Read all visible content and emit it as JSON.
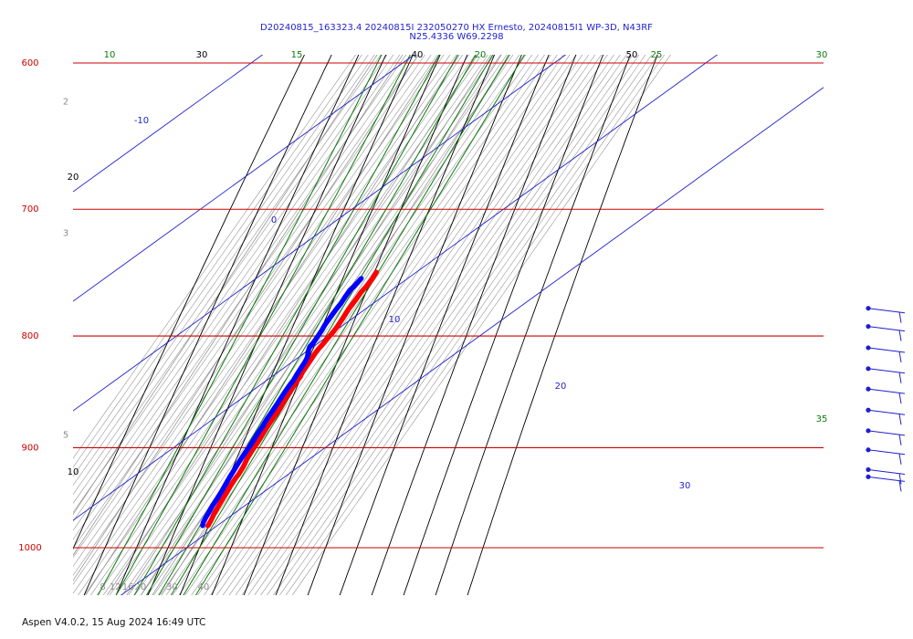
{
  "chart_data": {
    "type": "line",
    "chart_kind": "Skew-T log-P diagram",
    "title_line1": "D20240815_163323.4 20240815I 232050270 HX Ernesto, 20240815I1 WP-3D, N43RF",
    "title_line2": "N25.4336 W69.2298",
    "pressure_range_hPa": [
      1050,
      600
    ],
    "temperature_range_C": [
      6,
      44
    ],
    "isobars": [
      {
        "p": 600,
        "label": "600"
      },
      {
        "p": 700,
        "label": "700"
      },
      {
        "p": 800,
        "label": "800"
      },
      {
        "p": 900,
        "label": "900"
      },
      {
        "p": 1000,
        "label": "1000"
      }
    ],
    "isotherm_labels": [
      {
        "t": 8,
        "label": "8"
      },
      {
        "t": 12,
        "label": "12"
      },
      {
        "t": 16,
        "label": "16"
      },
      {
        "t": 20,
        "label": "20"
      },
      {
        "t": 30,
        "label": "30"
      },
      {
        "t": 40,
        "label": "40"
      }
    ],
    "mixing_ratio_labels": [
      {
        "label": "2",
        "p": 625
      },
      {
        "label": "3",
        "p": 718
      },
      {
        "label": "5",
        "p": 888
      }
    ],
    "moist_adiabat_labels": [
      {
        "label": "10",
        "p": 600
      },
      {
        "label": "15",
        "p": 600
      },
      {
        "label": "20",
        "p": 600
      },
      {
        "label": "25",
        "p": 600
      },
      {
        "label": "30",
        "p": 600
      },
      {
        "label": "35",
        "p": 873
      }
    ],
    "theta_e_labels": [
      {
        "label": "-10"
      },
      {
        "label": "0"
      },
      {
        "label": "10"
      },
      {
        "label": "20"
      },
      {
        "label": "30"
      }
    ],
    "dry_adiabat_labels": [
      {
        "label": "30",
        "p": 600
      },
      {
        "label": "40",
        "p": 600
      },
      {
        "label": "50",
        "p": 600
      },
      {
        "label": "20",
        "p": 680
      },
      {
        "label": "10",
        "p": 940
      }
    ],
    "series": [
      {
        "name": "Temperature",
        "color": "#ff0000",
        "points": [
          {
            "p": 748,
            "t": 24.9
          },
          {
            "p": 753,
            "t": 25.1
          },
          {
            "p": 758,
            "t": 25.0
          },
          {
            "p": 764,
            "t": 24.5
          },
          {
            "p": 770,
            "t": 24.5
          },
          {
            "p": 778,
            "t": 24.3
          },
          {
            "p": 785,
            "t": 24.5
          },
          {
            "p": 792,
            "t": 24.6
          },
          {
            "p": 797,
            "t": 24.5
          },
          {
            "p": 801,
            "t": 24.2
          },
          {
            "p": 807,
            "t": 23.9
          },
          {
            "p": 811,
            "t": 23.6
          },
          {
            "p": 815,
            "t": 23.5
          },
          {
            "p": 820,
            "t": 23.6
          },
          {
            "p": 825,
            "t": 23.6
          },
          {
            "p": 831,
            "t": 23.6
          },
          {
            "p": 835,
            "t": 24.0
          },
          {
            "p": 838,
            "t": 23.9
          },
          {
            "p": 845,
            "t": 24.0
          },
          {
            "p": 855,
            "t": 24.2
          },
          {
            "p": 863,
            "t": 24.6
          },
          {
            "p": 870,
            "t": 24.6
          },
          {
            "p": 876,
            "t": 24.6
          },
          {
            "p": 881,
            "t": 24.6
          },
          {
            "p": 888,
            "t": 24.8
          },
          {
            "p": 895,
            "t": 25.0
          },
          {
            "p": 903,
            "t": 25.1
          },
          {
            "p": 910,
            "t": 25.3
          },
          {
            "p": 918,
            "t": 25.9
          },
          {
            "p": 925,
            "t": 26.1
          },
          {
            "p": 930,
            "t": 26.0
          },
          {
            "p": 937,
            "t": 26.1
          },
          {
            "p": 944,
            "t": 26.4
          },
          {
            "p": 951,
            "t": 26.6
          },
          {
            "p": 958,
            "t": 26.8
          },
          {
            "p": 965,
            "t": 27.1
          },
          {
            "p": 972,
            "t": 27.6
          },
          {
            "p": 977,
            "t": 27.8
          }
        ]
      },
      {
        "name": "Dew point",
        "color": "#0000ff",
        "points": [
          {
            "p": 753,
            "t": 21.5
          },
          {
            "p": 756,
            "t": 21.3
          },
          {
            "p": 759,
            "t": 21.0
          },
          {
            "p": 762,
            "t": 20.5
          },
          {
            "p": 767,
            "t": 20.5
          },
          {
            "p": 773,
            "t": 20.6
          },
          {
            "p": 778,
            "t": 20.4
          },
          {
            "p": 785,
            "t": 20.3
          },
          {
            "p": 791,
            "t": 20.3
          },
          {
            "p": 795,
            "t": 20.5
          },
          {
            "p": 800,
            "t": 20.6
          },
          {
            "p": 806,
            "t": 20.6
          },
          {
            "p": 809,
            "t": 20.3
          },
          {
            "p": 812,
            "t": 20.7
          },
          {
            "p": 815,
            "t": 21.3
          },
          {
            "p": 818,
            "t": 21.9
          },
          {
            "p": 822,
            "t": 22.2
          },
          {
            "p": 828,
            "t": 22.3
          },
          {
            "p": 833,
            "t": 22.4
          },
          {
            "p": 838,
            "t": 22.6
          },
          {
            "p": 842,
            "t": 22.5
          },
          {
            "p": 848,
            "t": 22.5
          },
          {
            "p": 854,
            "t": 22.6
          },
          {
            "p": 860,
            "t": 22.7
          },
          {
            "p": 866,
            "t": 22.8
          },
          {
            "p": 873,
            "t": 22.8
          },
          {
            "p": 880,
            "t": 23.1
          },
          {
            "p": 887,
            "t": 23.1
          },
          {
            "p": 893,
            "t": 23.3
          },
          {
            "p": 900,
            "t": 23.4
          },
          {
            "p": 907,
            "t": 23.4
          },
          {
            "p": 914,
            "t": 23.5
          },
          {
            "p": 920,
            "t": 23.7
          },
          {
            "p": 928,
            "t": 23.9
          },
          {
            "p": 935,
            "t": 24.2
          },
          {
            "p": 942,
            "t": 24.5
          },
          {
            "p": 950,
            "t": 24.7
          },
          {
            "p": 957,
            "t": 24.8
          },
          {
            "p": 964,
            "t": 25.1
          },
          {
            "p": 969,
            "t": 25.3
          },
          {
            "p": 974,
            "t": 25.6
          },
          {
            "p": 977,
            "t": 26.1
          }
        ]
      }
    ],
    "wind_barbs": [
      {
        "p": 777,
        "speed_kt": 15
      },
      {
        "p": 792,
        "speed_kt": 15
      },
      {
        "p": 810,
        "speed_kt": 15
      },
      {
        "p": 828,
        "speed_kt": 15
      },
      {
        "p": 846,
        "speed_kt": 15
      },
      {
        "p": 865,
        "speed_kt": 15
      },
      {
        "p": 884,
        "speed_kt": 15
      },
      {
        "p": 902,
        "speed_kt": 15
      },
      {
        "p": 921,
        "speed_kt": 15
      },
      {
        "p": 928,
        "speed_kt": 15
      }
    ],
    "colors": {
      "isobar": "#cc0000",
      "isotherm": "#8c8c8c",
      "dry_adiabat": "#000000",
      "moist_adiabat": "#0a7a0a",
      "theta_e": "#1f1fd0",
      "temperature": "#ff0000",
      "dewpoint": "#0000ff",
      "wind": "#1f1fd0"
    }
  },
  "footer": {
    "software": "Aspen V4.0.2, 15 Aug 2024  16:49 UTC"
  }
}
